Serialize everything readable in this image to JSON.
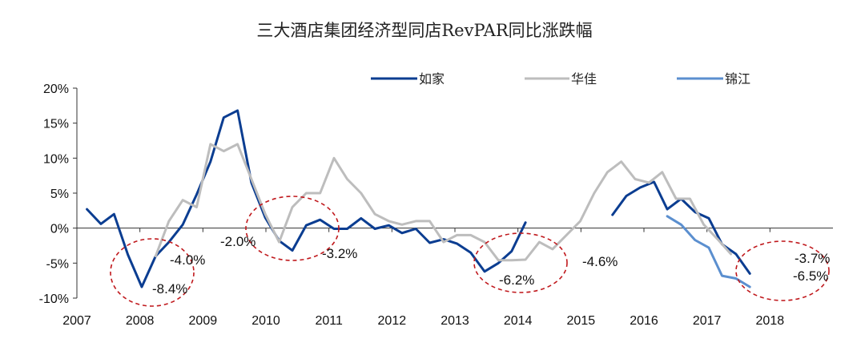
{
  "chart_data": {
    "type": "line",
    "title": "三大酒店集团经济型同店RevPAR同比涨跌幅",
    "xlabel": "",
    "ylabel": "",
    "ylim": [
      -10,
      20
    ],
    "xlim": [
      2007,
      2019
    ],
    "y_ticks": [
      "-10%",
      "-5%",
      "0%",
      "5%",
      "10%",
      "15%",
      "20%"
    ],
    "y_tick_values": [
      -10,
      -5,
      0,
      5,
      10,
      15,
      20
    ],
    "x_ticks": [
      "2007",
      "2008",
      "2009",
      "2010",
      "2011",
      "2012",
      "2013",
      "2014",
      "2015",
      "2016",
      "2017",
      "2018"
    ],
    "x_tick_values": [
      2007,
      2008,
      2009,
      2010,
      2011,
      2012,
      2013,
      2014,
      2015,
      2016,
      2017,
      2018
    ],
    "grid": false,
    "legend_position": "top-right",
    "series": [
      {
        "name": "如家",
        "color": "#0b3d91",
        "points": [
          [
            [
              2007.16,
              2.7
            ],
            [
              2007.38,
              0.6
            ],
            [
              2007.59,
              2.0
            ],
            [
              2007.81,
              -3.8
            ],
            [
              2008.03,
              -8.4
            ],
            [
              2008.25,
              -4.0
            ],
            [
              2008.46,
              -2.0
            ],
            [
              2008.68,
              0.5
            ],
            [
              2008.9,
              4.8
            ],
            [
              2009.12,
              9.5
            ],
            [
              2009.33,
              15.8
            ],
            [
              2009.55,
              16.8
            ],
            [
              2009.77,
              6.5
            ],
            [
              2009.99,
              1.5
            ],
            [
              2010.21,
              -1.8
            ],
            [
              2010.42,
              -3.2
            ],
            [
              2010.64,
              0.4
            ],
            [
              2010.86,
              1.2
            ],
            [
              2011.08,
              -0.1
            ],
            [
              2011.29,
              -0.1
            ],
            [
              2011.51,
              1.4
            ],
            [
              2011.73,
              -0.1
            ],
            [
              2011.95,
              0.4
            ],
            [
              2012.16,
              -0.7
            ],
            [
              2012.38,
              -0.1
            ],
            [
              2012.6,
              -2.1
            ],
            [
              2012.82,
              -1.6
            ],
            [
              2013.03,
              -2.2
            ],
            [
              2013.25,
              -3.5
            ],
            [
              2013.47,
              -6.2
            ],
            [
              2013.69,
              -5.0
            ],
            [
              2013.9,
              -3.3
            ],
            [
              2014.12,
              0.8
            ]
          ],
          [
            [
              2015.5,
              1.9
            ],
            [
              2015.72,
              4.6
            ],
            [
              2015.94,
              5.8
            ],
            [
              2016.16,
              6.6
            ],
            [
              2016.37,
              2.7
            ],
            [
              2016.59,
              4.2
            ],
            [
              2016.81,
              2.3
            ],
            [
              2017.03,
              1.4
            ],
            [
              2017.24,
              -2.3
            ],
            [
              2017.46,
              -3.7
            ],
            [
              2017.68,
              -6.5
            ]
          ]
        ]
      },
      {
        "name": "华佳",
        "color": "#bdbdbd",
        "points": [
          [
            [
              2008.25,
              -4.0
            ],
            [
              2008.46,
              1.0
            ],
            [
              2008.68,
              4.0
            ],
            [
              2008.9,
              3.0
            ],
            [
              2009.12,
              12.0
            ],
            [
              2009.33,
              11.0
            ],
            [
              2009.55,
              12.0
            ],
            [
              2009.77,
              7.0
            ],
            [
              2009.99,
              2.0
            ],
            [
              2010.21,
              -2.0
            ],
            [
              2010.42,
              3.0
            ],
            [
              2010.64,
              5.0
            ],
            [
              2010.86,
              5.0
            ],
            [
              2011.08,
              10.0
            ],
            [
              2011.29,
              7.0
            ],
            [
              2011.51,
              5.0
            ],
            [
              2011.73,
              2.0
            ],
            [
              2011.95,
              1.0
            ],
            [
              2012.16,
              0.5
            ],
            [
              2012.38,
              1.0
            ],
            [
              2012.6,
              1.0
            ],
            [
              2012.82,
              -2.0
            ],
            [
              2013.03,
              -1.0
            ],
            [
              2013.25,
              -1.0
            ],
            [
              2013.47,
              -2.0
            ],
            [
              2013.69,
              -4.6
            ],
            [
              2013.9,
              -4.6
            ],
            [
              2014.12,
              -4.5
            ],
            [
              2014.34,
              -2.0
            ],
            [
              2014.55,
              -3.0
            ],
            [
              2014.77,
              -1.0
            ],
            [
              2014.99,
              1.0
            ],
            [
              2015.21,
              5.0
            ],
            [
              2015.42,
              8.0
            ],
            [
              2015.64,
              9.5
            ],
            [
              2015.86,
              7.0
            ],
            [
              2016.08,
              6.5
            ],
            [
              2016.29,
              8.0
            ],
            [
              2016.51,
              4.2
            ],
            [
              2016.73,
              4.2
            ],
            [
              2016.95,
              0.5
            ],
            [
              2017.16,
              -1.5
            ],
            [
              2017.38,
              -3.7
            ]
          ]
        ]
      },
      {
        "name": "锦江",
        "color": "#5b8fcf",
        "points": [
          [
            [
              2016.37,
              1.7
            ],
            [
              2016.59,
              0.5
            ],
            [
              2016.81,
              -1.7
            ],
            [
              2017.03,
              -2.8
            ],
            [
              2017.24,
              -6.8
            ],
            [
              2017.46,
              -7.2
            ],
            [
              2017.68,
              -8.4
            ]
          ]
        ]
      }
    ],
    "annotations": [
      "-4.0%",
      "-8.4%",
      "-2.0%",
      "-3.2%",
      "-6.2%",
      "-4.6%",
      "-3.7%",
      "-6.5%"
    ]
  }
}
